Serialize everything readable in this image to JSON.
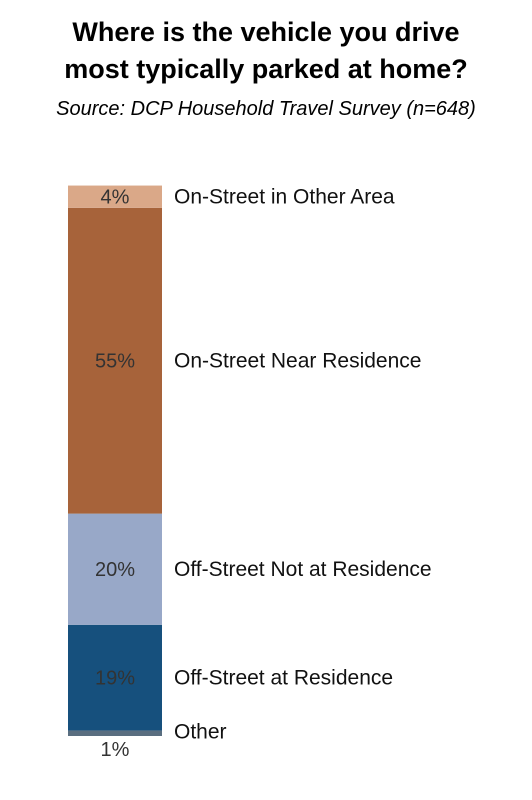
{
  "chart_data": {
    "type": "bar",
    "stacked": true,
    "title_lines": [
      "Where is the vehicle you drive",
      "most typically parked at home?"
    ],
    "subtitle": "Source: DCP Household Travel Survey (n=648)",
    "xlabel": "",
    "ylabel": "",
    "grid": false,
    "legend": "none",
    "ylim": [
      0,
      100
    ],
    "segments": [
      {
        "label": "Other",
        "value": 1,
        "value_label": "1%",
        "color": "#5a6e80"
      },
      {
        "label": "Off-Street at Residence",
        "value": 19,
        "value_label": "19%",
        "color": "#16507d"
      },
      {
        "label": "Off-Street Not at Residence",
        "value": 20,
        "value_label": "20%",
        "color": "#98a8c8"
      },
      {
        "label": "On-Street Near Residence",
        "value": 55,
        "value_label": "55%",
        "color": "#a7633a"
      },
      {
        "label": "On-Street in Other Area",
        "value": 4,
        "value_label": "4%",
        "color": "#daa888"
      }
    ]
  }
}
